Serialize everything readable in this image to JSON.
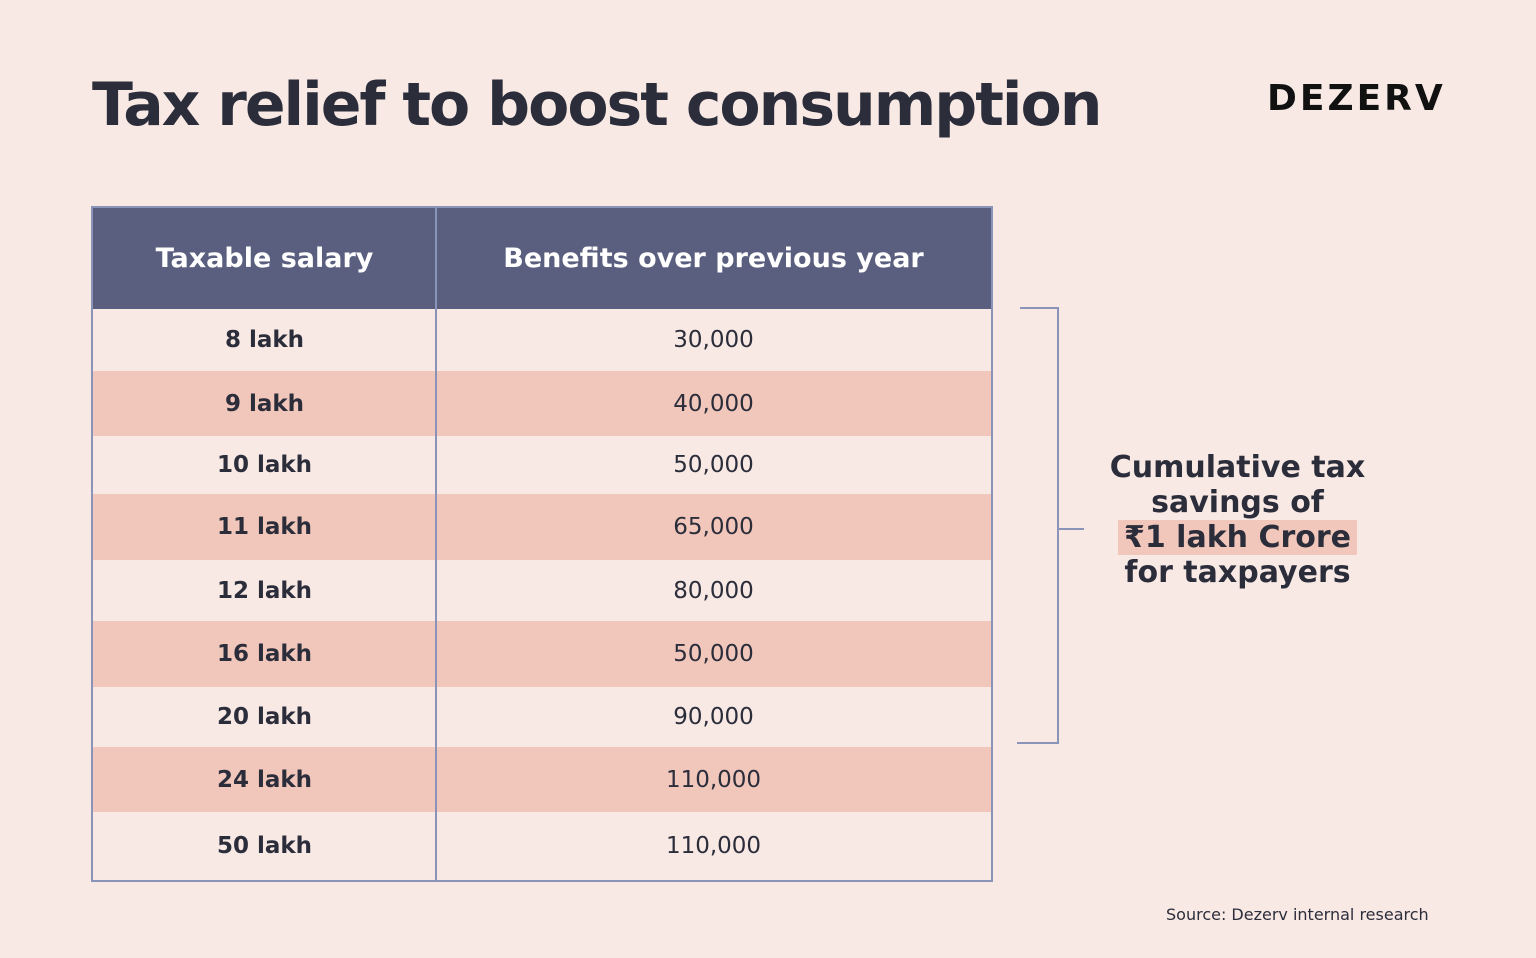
{
  "header": {
    "title": "Tax relief to boost consumption",
    "brand": "DEZERV"
  },
  "chart_data": {
    "type": "table",
    "title": "Tax relief to boost consumption",
    "columns": [
      "Taxable salary",
      "Benefits over previous year"
    ],
    "rows": [
      {
        "salary": "8 lakh",
        "benefit": "30,000"
      },
      {
        "salary": "9 lakh",
        "benefit": "40,000"
      },
      {
        "salary": "10 lakh",
        "benefit": "50,000"
      },
      {
        "salary": "11 lakh",
        "benefit": "65,000"
      },
      {
        "salary": "12 lakh",
        "benefit": "80,000"
      },
      {
        "salary": "16 lakh",
        "benefit": "50,000"
      },
      {
        "salary": "20 lakh",
        "benefit": "90,000"
      },
      {
        "salary": "24 lakh",
        "benefit": "110,000"
      },
      {
        "salary": "50 lakh",
        "benefit": "110,000"
      }
    ]
  },
  "callout": {
    "line1": "Cumulative tax",
    "line2": "savings of",
    "highlight": "₹1 lakh Crore",
    "line4": "for taxpayers"
  },
  "footer": {
    "source": "Source: Dezerv internal research"
  },
  "colors": {
    "background": "#f8e9e5",
    "header_fill": "#5b5f7f",
    "alt_row": "#f2c7bb",
    "border": "#8a93b8",
    "text": "#2b2d3a"
  }
}
